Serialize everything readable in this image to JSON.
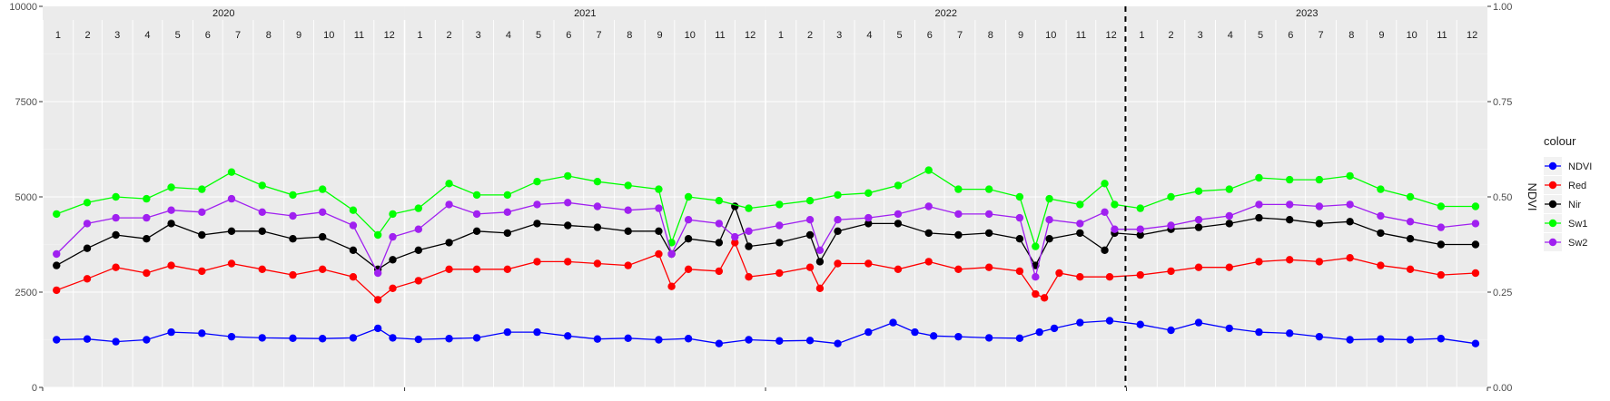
{
  "chart_data": {
    "type": "line",
    "years": [
      "2020",
      "2021",
      "2022",
      "2023"
    ],
    "months": [
      "1",
      "2",
      "3",
      "4",
      "5",
      "6",
      "7",
      "8",
      "9",
      "10",
      "11",
      "12"
    ],
    "y_left": {
      "min": 0,
      "max": 10000,
      "ticks": [
        0,
        2500,
        5000,
        7500,
        10000
      ],
      "tick_labels": [
        "0",
        "2500",
        "5000",
        "7500",
        "10000"
      ]
    },
    "y_right": {
      "label": "NDVI",
      "min": 0,
      "max": 1,
      "ticks": [
        0,
        0.25,
        0.5,
        0.75,
        1.0
      ],
      "tick_labels": [
        "0.00",
        "0.25",
        "0.50",
        "0.75",
        "1.00"
      ]
    },
    "dashed_vline": {
      "x": "2022-12-31"
    },
    "grid": true,
    "legend": {
      "title": "colour",
      "placement": "right"
    },
    "series": [
      {
        "name": "NDVI",
        "color": "#0000FF",
        "points": [
          [
            "2020-01-15",
            1250
          ],
          [
            "2020-02-15",
            1270
          ],
          [
            "2020-03-15",
            1200
          ],
          [
            "2020-04-15",
            1250
          ],
          [
            "2020-05-10",
            1450
          ],
          [
            "2020-06-10",
            1420
          ],
          [
            "2020-07-10",
            1330
          ],
          [
            "2020-08-10",
            1300
          ],
          [
            "2020-09-10",
            1290
          ],
          [
            "2020-10-10",
            1280
          ],
          [
            "2020-11-10",
            1300
          ],
          [
            "2020-12-05",
            1550
          ],
          [
            "2020-12-20",
            1300
          ],
          [
            "2021-01-15",
            1260
          ],
          [
            "2021-02-15",
            1280
          ],
          [
            "2021-03-15",
            1300
          ],
          [
            "2021-04-15",
            1450
          ],
          [
            "2021-05-15",
            1450
          ],
          [
            "2021-06-15",
            1350
          ],
          [
            "2021-07-15",
            1270
          ],
          [
            "2021-08-15",
            1290
          ],
          [
            "2021-09-15",
            1250
          ],
          [
            "2021-10-15",
            1280
          ],
          [
            "2021-11-15",
            1150
          ],
          [
            "2021-12-15",
            1250
          ],
          [
            "2022-01-15",
            1220
          ],
          [
            "2022-02-15",
            1230
          ],
          [
            "2022-03-15",
            1150
          ],
          [
            "2022-04-15",
            1450
          ],
          [
            "2022-05-10",
            1700
          ],
          [
            "2022-06-01",
            1450
          ],
          [
            "2022-06-20",
            1350
          ],
          [
            "2022-07-15",
            1330
          ],
          [
            "2022-08-15",
            1300
          ],
          [
            "2022-09-15",
            1290
          ],
          [
            "2022-10-05",
            1450
          ],
          [
            "2022-10-20",
            1550
          ],
          [
            "2022-11-15",
            1700
          ],
          [
            "2022-12-15",
            1750
          ],
          [
            "2023-01-15",
            1650
          ],
          [
            "2023-02-15",
            1500
          ],
          [
            "2023-03-15",
            1700
          ],
          [
            "2023-04-15",
            1550
          ],
          [
            "2023-05-15",
            1450
          ],
          [
            "2023-06-15",
            1420
          ],
          [
            "2023-07-15",
            1330
          ],
          [
            "2023-08-15",
            1250
          ],
          [
            "2023-09-15",
            1270
          ],
          [
            "2023-10-15",
            1250
          ],
          [
            "2023-11-15",
            1280
          ],
          [
            "2023-12-20",
            1150
          ]
        ]
      },
      {
        "name": "Red",
        "color": "#FF0000",
        "points": [
          [
            "2020-01-15",
            2550
          ],
          [
            "2020-02-15",
            2850
          ],
          [
            "2020-03-15",
            3150
          ],
          [
            "2020-04-15",
            3000
          ],
          [
            "2020-05-10",
            3200
          ],
          [
            "2020-06-10",
            3050
          ],
          [
            "2020-07-10",
            3250
          ],
          [
            "2020-08-10",
            3100
          ],
          [
            "2020-09-10",
            2950
          ],
          [
            "2020-10-10",
            3100
          ],
          [
            "2020-11-10",
            2900
          ],
          [
            "2020-12-05",
            2300
          ],
          [
            "2020-12-20",
            2600
          ],
          [
            "2021-01-15",
            2800
          ],
          [
            "2021-02-15",
            3100
          ],
          [
            "2021-03-15",
            3100
          ],
          [
            "2021-04-15",
            3100
          ],
          [
            "2021-05-15",
            3300
          ],
          [
            "2021-06-15",
            3300
          ],
          [
            "2021-07-15",
            3250
          ],
          [
            "2021-08-15",
            3200
          ],
          [
            "2021-09-15",
            3500
          ],
          [
            "2021-09-28",
            2650
          ],
          [
            "2021-10-15",
            3100
          ],
          [
            "2021-11-15",
            3050
          ],
          [
            "2021-12-01",
            3800
          ],
          [
            "2021-12-15",
            2900
          ],
          [
            "2022-01-15",
            3000
          ],
          [
            "2022-02-15",
            3150
          ],
          [
            "2022-02-25",
            2600
          ],
          [
            "2022-03-15",
            3250
          ],
          [
            "2022-04-15",
            3250
          ],
          [
            "2022-05-15",
            3100
          ],
          [
            "2022-06-15",
            3300
          ],
          [
            "2022-07-15",
            3100
          ],
          [
            "2022-08-15",
            3150
          ],
          [
            "2022-09-15",
            3050
          ],
          [
            "2022-10-01",
            2450
          ],
          [
            "2022-10-10",
            2350
          ],
          [
            "2022-10-25",
            3000
          ],
          [
            "2022-11-15",
            2900
          ],
          [
            "2022-12-15",
            2900
          ],
          [
            "2023-01-15",
            2950
          ],
          [
            "2023-02-15",
            3050
          ],
          [
            "2023-03-15",
            3150
          ],
          [
            "2023-04-15",
            3150
          ],
          [
            "2023-05-15",
            3300
          ],
          [
            "2023-06-15",
            3350
          ],
          [
            "2023-07-15",
            3300
          ],
          [
            "2023-08-15",
            3400
          ],
          [
            "2023-09-15",
            3200
          ],
          [
            "2023-10-15",
            3100
          ],
          [
            "2023-11-15",
            2950
          ],
          [
            "2023-12-20",
            3000
          ]
        ]
      },
      {
        "name": "Nir",
        "color": "#000000",
        "points": [
          [
            "2020-01-15",
            3200
          ],
          [
            "2020-02-15",
            3650
          ],
          [
            "2020-03-15",
            4000
          ],
          [
            "2020-04-15",
            3900
          ],
          [
            "2020-05-10",
            4300
          ],
          [
            "2020-06-10",
            4000
          ],
          [
            "2020-07-10",
            4100
          ],
          [
            "2020-08-10",
            4100
          ],
          [
            "2020-09-10",
            3900
          ],
          [
            "2020-10-10",
            3950
          ],
          [
            "2020-11-10",
            3600
          ],
          [
            "2020-12-05",
            3100
          ],
          [
            "2020-12-20",
            3350
          ],
          [
            "2021-01-15",
            3600
          ],
          [
            "2021-02-15",
            3800
          ],
          [
            "2021-03-15",
            4100
          ],
          [
            "2021-04-15",
            4050
          ],
          [
            "2021-05-15",
            4300
          ],
          [
            "2021-06-15",
            4250
          ],
          [
            "2021-07-15",
            4200
          ],
          [
            "2021-08-15",
            4100
          ],
          [
            "2021-09-15",
            4100
          ],
          [
            "2021-09-28",
            3500
          ],
          [
            "2021-10-15",
            3900
          ],
          [
            "2021-11-15",
            3800
          ],
          [
            "2021-12-01",
            4750
          ],
          [
            "2021-12-15",
            3700
          ],
          [
            "2022-01-15",
            3800
          ],
          [
            "2022-02-15",
            4000
          ],
          [
            "2022-02-25",
            3300
          ],
          [
            "2022-03-15",
            4100
          ],
          [
            "2022-04-15",
            4300
          ],
          [
            "2022-05-15",
            4300
          ],
          [
            "2022-06-15",
            4050
          ],
          [
            "2022-07-15",
            4000
          ],
          [
            "2022-08-15",
            4050
          ],
          [
            "2022-09-15",
            3900
          ],
          [
            "2022-10-01",
            3200
          ],
          [
            "2022-10-15",
            3900
          ],
          [
            "2022-11-15",
            4050
          ],
          [
            "2022-12-10",
            3600
          ],
          [
            "2022-12-20",
            4050
          ],
          [
            "2023-01-15",
            4000
          ],
          [
            "2023-02-15",
            4150
          ],
          [
            "2023-03-15",
            4200
          ],
          [
            "2023-04-15",
            4300
          ],
          [
            "2023-05-15",
            4450
          ],
          [
            "2023-06-15",
            4400
          ],
          [
            "2023-07-15",
            4300
          ],
          [
            "2023-08-15",
            4350
          ],
          [
            "2023-09-15",
            4050
          ],
          [
            "2023-10-15",
            3900
          ],
          [
            "2023-11-15",
            3750
          ],
          [
            "2023-12-20",
            3750
          ]
        ]
      },
      {
        "name": "Sw1",
        "color": "#00FF00",
        "points": [
          [
            "2020-01-15",
            4550
          ],
          [
            "2020-02-15",
            4850
          ],
          [
            "2020-03-15",
            5000
          ],
          [
            "2020-04-15",
            4950
          ],
          [
            "2020-05-10",
            5250
          ],
          [
            "2020-06-10",
            5200
          ],
          [
            "2020-07-10",
            5650
          ],
          [
            "2020-08-10",
            5300
          ],
          [
            "2020-09-10",
            5050
          ],
          [
            "2020-10-10",
            5200
          ],
          [
            "2020-11-10",
            4650
          ],
          [
            "2020-12-05",
            4000
          ],
          [
            "2020-12-20",
            4550
          ],
          [
            "2021-01-15",
            4700
          ],
          [
            "2021-02-15",
            5350
          ],
          [
            "2021-03-15",
            5050
          ],
          [
            "2021-04-15",
            5050
          ],
          [
            "2021-05-15",
            5400
          ],
          [
            "2021-06-15",
            5550
          ],
          [
            "2021-07-15",
            5400
          ],
          [
            "2021-08-15",
            5300
          ],
          [
            "2021-09-15",
            5200
          ],
          [
            "2021-09-28",
            3800
          ],
          [
            "2021-10-15",
            5000
          ],
          [
            "2021-11-15",
            4900
          ],
          [
            "2021-12-15",
            4700
          ],
          [
            "2022-01-15",
            4800
          ],
          [
            "2022-02-15",
            4900
          ],
          [
            "2022-03-15",
            5050
          ],
          [
            "2022-04-15",
            5100
          ],
          [
            "2022-05-15",
            5300
          ],
          [
            "2022-06-15",
            5700
          ],
          [
            "2022-07-15",
            5200
          ],
          [
            "2022-08-15",
            5200
          ],
          [
            "2022-09-15",
            5000
          ],
          [
            "2022-10-01",
            3700
          ],
          [
            "2022-10-15",
            4950
          ],
          [
            "2022-11-15",
            4800
          ],
          [
            "2022-12-10",
            5350
          ],
          [
            "2022-12-20",
            4800
          ],
          [
            "2023-01-15",
            4700
          ],
          [
            "2023-02-15",
            5000
          ],
          [
            "2023-03-15",
            5150
          ],
          [
            "2023-04-15",
            5200
          ],
          [
            "2023-05-15",
            5500
          ],
          [
            "2023-06-15",
            5450
          ],
          [
            "2023-07-15",
            5450
          ],
          [
            "2023-08-15",
            5550
          ],
          [
            "2023-09-15",
            5200
          ],
          [
            "2023-10-15",
            5000
          ],
          [
            "2023-11-15",
            4750
          ],
          [
            "2023-12-20",
            4750
          ]
        ]
      },
      {
        "name": "Sw2",
        "color": "#A020F0",
        "points": [
          [
            "2020-01-15",
            3500
          ],
          [
            "2020-02-15",
            4300
          ],
          [
            "2020-03-15",
            4450
          ],
          [
            "2020-04-15",
            4450
          ],
          [
            "2020-05-10",
            4650
          ],
          [
            "2020-06-10",
            4600
          ],
          [
            "2020-07-10",
            4950
          ],
          [
            "2020-08-10",
            4600
          ],
          [
            "2020-09-10",
            4500
          ],
          [
            "2020-10-10",
            4600
          ],
          [
            "2020-11-10",
            4250
          ],
          [
            "2020-12-05",
            3000
          ],
          [
            "2020-12-20",
            3950
          ],
          [
            "2021-01-15",
            4150
          ],
          [
            "2021-02-15",
            4800
          ],
          [
            "2021-03-15",
            4550
          ],
          [
            "2021-04-15",
            4600
          ],
          [
            "2021-05-15",
            4800
          ],
          [
            "2021-06-15",
            4850
          ],
          [
            "2021-07-15",
            4750
          ],
          [
            "2021-08-15",
            4650
          ],
          [
            "2021-09-15",
            4700
          ],
          [
            "2021-09-28",
            3500
          ],
          [
            "2021-10-15",
            4400
          ],
          [
            "2021-11-15",
            4300
          ],
          [
            "2021-12-01",
            3950
          ],
          [
            "2021-12-15",
            4100
          ],
          [
            "2022-01-15",
            4250
          ],
          [
            "2022-02-15",
            4400
          ],
          [
            "2022-02-25",
            3600
          ],
          [
            "2022-03-15",
            4400
          ],
          [
            "2022-04-15",
            4450
          ],
          [
            "2022-05-15",
            4550
          ],
          [
            "2022-06-15",
            4750
          ],
          [
            "2022-07-15",
            4550
          ],
          [
            "2022-08-15",
            4550
          ],
          [
            "2022-09-15",
            4450
          ],
          [
            "2022-10-01",
            2900
          ],
          [
            "2022-10-15",
            4400
          ],
          [
            "2022-11-15",
            4300
          ],
          [
            "2022-12-10",
            4600
          ],
          [
            "2022-12-20",
            4150
          ],
          [
            "2023-01-15",
            4150
          ],
          [
            "2023-02-15",
            4250
          ],
          [
            "2023-03-15",
            4400
          ],
          [
            "2023-04-15",
            4500
          ],
          [
            "2023-05-15",
            4800
          ],
          [
            "2023-06-15",
            4800
          ],
          [
            "2023-07-15",
            4750
          ],
          [
            "2023-08-15",
            4800
          ],
          [
            "2023-09-15",
            4500
          ],
          [
            "2023-10-15",
            4350
          ],
          [
            "2023-11-15",
            4200
          ],
          [
            "2023-12-20",
            4300
          ]
        ]
      }
    ]
  }
}
